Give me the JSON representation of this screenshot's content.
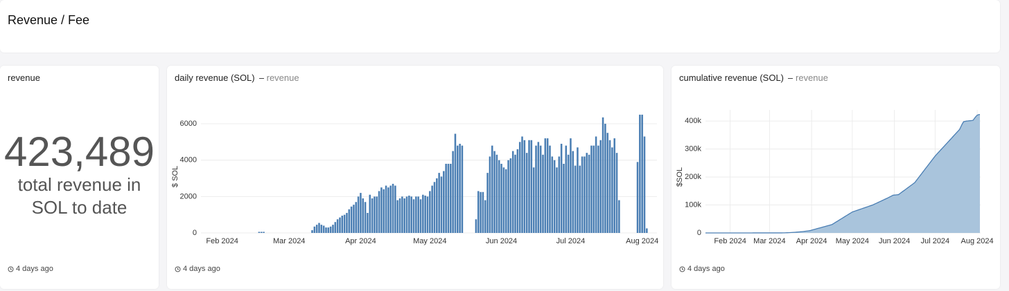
{
  "header": {
    "title": "Revenue / Fee"
  },
  "counter": {
    "title": "revenue",
    "value": "423,489",
    "caption": "total revenue in SOL to date",
    "footer": "4 days ago"
  },
  "chart_data": [
    {
      "type": "bar",
      "title": "daily revenue (SOL)",
      "subtitle": "revenue",
      "ylabel": "$ SOL",
      "footer": "4 days ago",
      "categories": [
        null,
        null,
        null,
        null,
        null,
        null,
        null,
        null,
        null,
        "Feb 2024",
        null,
        null,
        null,
        null,
        null,
        null,
        null,
        null,
        null,
        null,
        null,
        null,
        null,
        null,
        null,
        null,
        null,
        null,
        null,
        null,
        null,
        null,
        null,
        null,
        null,
        null,
        null,
        null,
        "Mar 2024",
        null,
        null,
        null,
        null,
        null,
        null,
        null,
        null,
        null,
        null,
        null,
        null,
        null,
        null,
        null,
        null,
        null,
        null,
        null,
        null,
        null,
        null,
        null,
        null,
        null,
        null,
        null,
        null,
        null,
        null,
        "Apr 2024",
        null,
        null,
        null,
        null,
        null,
        null,
        null,
        null,
        null,
        null,
        null,
        null,
        null,
        null,
        null,
        null,
        null,
        null,
        null,
        null,
        null,
        null,
        null,
        null,
        null,
        null,
        null,
        null,
        null,
        "May 2024",
        null,
        null,
        null,
        null,
        null,
        null,
        null,
        null,
        null,
        null,
        null,
        null,
        null,
        null,
        null,
        null,
        null,
        null,
        null,
        null,
        null,
        null,
        null,
        null,
        null,
        null,
        null,
        null,
        null,
        null,
        "Jun 2024",
        null,
        null,
        null,
        null,
        null,
        null,
        null,
        null,
        null,
        null,
        null,
        null,
        null,
        null,
        null,
        null,
        null,
        null,
        null,
        null,
        null,
        null,
        null,
        null,
        null,
        null,
        null,
        null,
        null,
        "Jul 2024",
        null,
        null,
        null,
        null,
        null,
        null,
        null,
        null,
        null,
        null,
        null,
        null,
        null,
        null,
        null,
        null,
        null,
        null,
        null,
        null,
        null,
        null,
        null,
        null,
        null,
        null,
        null,
        null,
        null,
        null,
        "Aug 2024",
        null,
        null
      ],
      "values": [
        0,
        0,
        0,
        0,
        0,
        0,
        0,
        0,
        0,
        0,
        0,
        0,
        0,
        0,
        0,
        0,
        0,
        0,
        0,
        0,
        0,
        0,
        0,
        0,
        0,
        60,
        60,
        60,
        0,
        0,
        0,
        0,
        0,
        0,
        0,
        0,
        0,
        0,
        0,
        0,
        0,
        0,
        0,
        0,
        0,
        0,
        0,
        0,
        150,
        350,
        450,
        550,
        450,
        400,
        300,
        300,
        350,
        450,
        600,
        750,
        850,
        950,
        1000,
        1100,
        1300,
        1450,
        1550,
        1700,
        2000,
        2200,
        1900,
        1700,
        1100,
        2100,
        1900,
        2000,
        2000,
        2300,
        2500,
        2400,
        2600,
        2500,
        2600,
        2700,
        2600,
        1800,
        1900,
        2000,
        1900,
        2000,
        2050,
        2000,
        1850,
        2000,
        2000,
        1850,
        2100,
        2050,
        2000,
        2300,
        2600,
        2800,
        3000,
        3300,
        3100,
        3400,
        3800,
        3800,
        3800,
        4500,
        5450,
        4800,
        4900,
        4800,
        0,
        0,
        0,
        0,
        0,
        750,
        2300,
        2250,
        2250,
        1800,
        3300,
        4200,
        4800,
        4500,
        4300,
        4000,
        3800,
        3600,
        3500,
        4000,
        4100,
        4500,
        4300,
        4600,
        5000,
        5300,
        5100,
        4400,
        5100,
        5100,
        3600,
        4800,
        5000,
        4800,
        4300,
        5200,
        5200,
        4800,
        4200,
        4000,
        3600,
        4200,
        4900,
        3800,
        4800,
        4300,
        5200,
        4500,
        3700,
        4700,
        3700,
        4200,
        4200,
        4400,
        4300,
        4800,
        4800,
        5300,
        4800,
        5100,
        6350,
        6000,
        5500,
        5100,
        4700,
        5200,
        4400,
        1800,
        0,
        0,
        0,
        0,
        0,
        0,
        0,
        3900,
        6500,
        6500,
        5300,
        250
      ],
      "color": "#4a7eb3",
      "ylim": [
        0,
        6800
      ],
      "yticks": [
        0,
        2000,
        4000,
        6000
      ],
      "grid": true
    },
    {
      "type": "area",
      "title": "cumulative revenue (SOL)",
      "subtitle": "revenue",
      "ylabel": "$SOL",
      "footer": "4 days ago",
      "categories": [
        null,
        null,
        null,
        null,
        null,
        null,
        null,
        null,
        null,
        "Feb 2024",
        null,
        null,
        null,
        null,
        null,
        null,
        null,
        null,
        null,
        null,
        null,
        null,
        null,
        null,
        null,
        null,
        null,
        null,
        null,
        null,
        null,
        null,
        null,
        null,
        null,
        null,
        null,
        null,
        "Mar 2024",
        null,
        null,
        null,
        null,
        null,
        null,
        null,
        null,
        null,
        null,
        null,
        null,
        null,
        null,
        null,
        null,
        null,
        null,
        null,
        null,
        null,
        null,
        null,
        null,
        null,
        null,
        null,
        null,
        null,
        null,
        "Apr 2024",
        null,
        null,
        null,
        null,
        null,
        null,
        null,
        null,
        null,
        null,
        null,
        null,
        null,
        null,
        null,
        null,
        null,
        null,
        null,
        null,
        null,
        null,
        null,
        null,
        null,
        null,
        null,
        null,
        null,
        "May 2024",
        null,
        null,
        null,
        null,
        null,
        null,
        null,
        null,
        null,
        null,
        null,
        null,
        null,
        null,
        null,
        null,
        null,
        null,
        null,
        null,
        null,
        null,
        null,
        null,
        null,
        null,
        null,
        null,
        null,
        null,
        "Jun 2024",
        null,
        null,
        null,
        null,
        null,
        null,
        null,
        null,
        null,
        null,
        null,
        null,
        null,
        null,
        null,
        null,
        null,
        null,
        null,
        null,
        null,
        null,
        null,
        null,
        null,
        null,
        null,
        null,
        null,
        "Jul 2024",
        null,
        null,
        null,
        null,
        null,
        null,
        null,
        null,
        null,
        null,
        null,
        null,
        null,
        null,
        null,
        null,
        null,
        null,
        null,
        null,
        null,
        null,
        null,
        null,
        null,
        null,
        null,
        null,
        null,
        null,
        "Aug 2024",
        null,
        null
      ],
      "values": [
        0,
        0,
        0,
        0,
        0,
        0,
        0,
        0,
        0,
        0,
        0,
        0,
        0,
        0,
        0,
        0,
        0,
        0,
        0,
        0,
        0,
        0,
        0,
        0,
        0,
        60,
        120,
        180,
        180,
        180,
        180,
        180,
        180,
        180,
        180,
        180,
        180,
        180,
        180,
        180,
        180,
        180,
        180,
        180,
        180,
        180,
        180,
        180,
        300,
        400,
        600,
        800,
        1000,
        1300,
        1600,
        1900,
        2200,
        2500,
        2900,
        3300,
        3700,
        4200,
        4700,
        5200,
        5800,
        6400,
        7100,
        7800,
        8500,
        10000,
        11300,
        12600,
        14000,
        15300,
        16600,
        18000,
        19300,
        20600,
        22000,
        23300,
        24600,
        26000,
        27300,
        28600,
        30000,
        33000,
        36000,
        39000,
        42000,
        45000,
        48000,
        51000,
        54000,
        57000,
        60000,
        63000,
        66000,
        69000,
        72000,
        75000,
        76700,
        78300,
        80000,
        81700,
        83300,
        85000,
        86700,
        88300,
        90000,
        91700,
        93300,
        95000,
        96700,
        98300,
        100000,
        102300,
        104600,
        106800,
        109100,
        111400,
        113600,
        115900,
        118200,
        120500,
        122700,
        125000,
        127500,
        130000,
        132500,
        135000,
        135500,
        136000,
        136500,
        137000,
        140600,
        144200,
        147800,
        151300,
        154900,
        158500,
        162100,
        165700,
        169300,
        172800,
        176400,
        180000,
        186300,
        192700,
        199000,
        205300,
        211700,
        218000,
        224300,
        230700,
        237000,
        243300,
        249700,
        256000,
        262300,
        268700,
        275000,
        280300,
        285600,
        290800,
        296100,
        301400,
        306700,
        311900,
        317200,
        322500,
        327800,
        333100,
        338300,
        343600,
        348900,
        354200,
        359400,
        364700,
        370000,
        380000,
        390000,
        398000,
        399000,
        400000,
        400500,
        401000,
        401500,
        402000,
        403000,
        410000,
        416000,
        421000,
        423000,
        423489
      ],
      "color": "#4a7eb3",
      "fill": "#a9c4dc",
      "ylim": [
        0,
        440000
      ],
      "yticks": [
        0,
        {
          "value": 100000,
          "label": "100k"
        },
        {
          "value": 200000,
          "label": "200k"
        },
        {
          "value": 300000,
          "label": "300k"
        },
        {
          "value": 400000,
          "label": "400k"
        }
      ],
      "grid": true,
      "xgrid": true
    }
  ]
}
